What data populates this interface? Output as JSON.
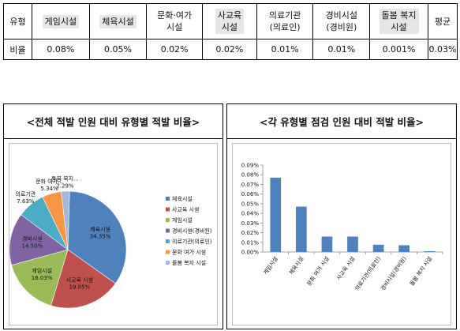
{
  "table": {
    "headers": [
      {
        "lines": [
          "유형"
        ],
        "highlight": false
      },
      {
        "lines": [
          "게임시설"
        ],
        "highlight": true
      },
      {
        "lines": [
          "체육시설"
        ],
        "highlight": true
      },
      {
        "lines": [
          "문화·여가",
          "시설"
        ],
        "highlight": false
      },
      {
        "lines": [
          "사교육",
          "시설"
        ],
        "highlight": true
      },
      {
        "lines": [
          "의료기관",
          "(의료인)"
        ],
        "highlight": false
      },
      {
        "lines": [
          "경비시설",
          "(경비원)"
        ],
        "highlight": false
      },
      {
        "lines": [
          "돌봄 복지",
          "시설"
        ],
        "highlight": true
      },
      {
        "lines": [
          "평균"
        ],
        "highlight": false
      }
    ],
    "row": [
      "비율",
      "0.08%",
      "0.05%",
      "0.02%",
      "0.02%",
      "0.01%",
      "0.01%",
      "0.001%",
      "0.03%"
    ]
  },
  "left_panel": {
    "title": "<전체 적발 인원 대비 유형별 적발 비율>"
  },
  "right_panel": {
    "title": "<각 유형별 점검 인원 대비 적발 비율>"
  },
  "chart_data": [
    {
      "type": "pie",
      "title": "",
      "legend_placement": "right",
      "slices": [
        {
          "legend": "체육시설",
          "label": "체육시설",
          "value": 34.35,
          "percent_label": "34.35%",
          "color": "#4f81bd"
        },
        {
          "legend": "사교육 시설",
          "label": "사교육 시설",
          "value": 19.85,
          "percent_label": "19.85%",
          "color": "#c0504d"
        },
        {
          "legend": "게임시설",
          "label": "게임시설",
          "value": 16.03,
          "percent_label": "16.03%",
          "color": "#9bbb59"
        },
        {
          "legend": "경비시설(경비원)",
          "label": "경비시설",
          "value": 14.5,
          "percent_label": "14.50%",
          "color": "#8064a2"
        },
        {
          "legend": "의료기관(의료인)",
          "label": "의료기관",
          "value": 7.63,
          "percent_label": "7.63%",
          "color": "#4bacc6"
        },
        {
          "legend": "문화 여가 시설",
          "label": "문화 여가...",
          "value": 5.34,
          "percent_label": "5.34%",
          "color": "#f79646"
        },
        {
          "legend": "돌봄 복지 시설",
          "label": "돌봄 복지...",
          "value": 2.29,
          "percent_label": "2.29%",
          "color": "#a5b6d8"
        }
      ]
    },
    {
      "type": "bar",
      "title": "",
      "categories": [
        "게임시설",
        "체육시설",
        "문화 여가 시설",
        "사교육 시설",
        "의료기관(의료인)",
        "경비시설(경비원)",
        "돌봄 복지 시설"
      ],
      "values": [
        0.077,
        0.047,
        0.016,
        0.016,
        0.0075,
        0.007,
        0.0008
      ],
      "ylim": [
        0,
        0.09
      ],
      "yticks": [
        "0.00%",
        "0.01%",
        "0.02%",
        "0.03%",
        "0.04%",
        "0.05%",
        "0.06%",
        "0.07%",
        "0.08%",
        "0.09%"
      ],
      "bar_color": "#4f81bd",
      "grid": false
    }
  ]
}
